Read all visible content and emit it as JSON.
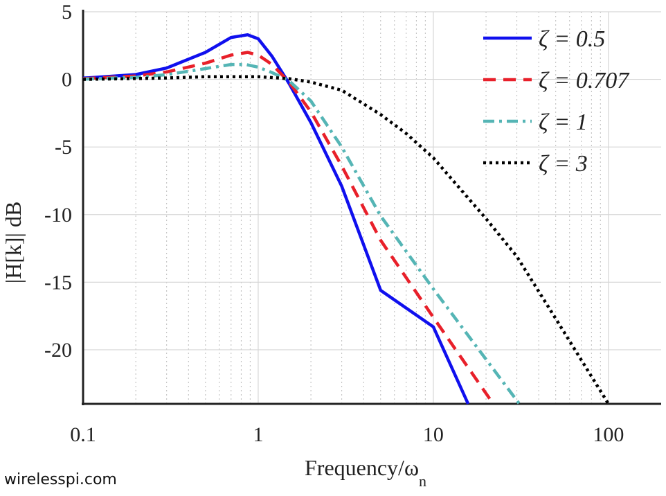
{
  "chart_data": {
    "type": "line",
    "xlabel": "Frequency/ω",
    "xlabel_sub": "n",
    "ylabel": "|H[k]| dB",
    "xscale": "log",
    "xlim": [
      0.1,
      200
    ],
    "ylim": [
      -24,
      5
    ],
    "xticks": [
      0.1,
      1,
      10,
      100
    ],
    "xtick_labels": [
      "0.1",
      "1",
      "10",
      "100"
    ],
    "yticks": [
      5,
      0,
      -5,
      -10,
      -15,
      -20
    ],
    "ytick_labels": [
      "5",
      "0",
      "-5",
      "-10",
      "-15",
      "-20"
    ],
    "grid": true,
    "legend_position": "top-right",
    "series": [
      {
        "name": "ζ = 0.5",
        "zeta": 0.5,
        "color": "#1010ee",
        "dash": "solid",
        "x": [
          0.1,
          0.2,
          0.3,
          0.5,
          0.7,
          0.87,
          1.0,
          1.2,
          1.5,
          2,
          3,
          5,
          10,
          15.8
        ],
        "y": [
          0.09,
          0.36,
          0.84,
          2.0,
          3.1,
          3.3,
          3.0,
          1.7,
          -0.3,
          -3.2,
          -7.9,
          -15.6,
          -18.3,
          -24
        ]
      },
      {
        "name": "ζ = 0.707",
        "zeta": 0.707,
        "color": "#e8202a",
        "dash": "dashed",
        "x": [
          0.1,
          0.2,
          0.3,
          0.5,
          0.7,
          0.87,
          1.0,
          1.2,
          1.5,
          2,
          3,
          5,
          10,
          22
        ],
        "y": [
          0.05,
          0.25,
          0.55,
          1.2,
          1.8,
          2.0,
          1.8,
          1.1,
          -0.2,
          -2.4,
          -6.4,
          -11.9,
          -17.6,
          -24
        ]
      },
      {
        "name": "ζ = 1",
        "zeta": 1,
        "color": "#55b5b5",
        "dash": "dashdot",
        "x": [
          0.1,
          0.2,
          0.3,
          0.5,
          0.7,
          0.85,
          1.0,
          1.2,
          1.5,
          2,
          3,
          5,
          10,
          31
        ],
        "y": [
          0.02,
          0.15,
          0.35,
          0.8,
          1.1,
          1.1,
          0.9,
          0.5,
          -0.1,
          -1.6,
          -5.0,
          -10.1,
          -15.5,
          -24
        ]
      },
      {
        "name": "ζ = 3",
        "zeta": 3,
        "color": "#000000",
        "dash": "dotted",
        "x": [
          0.1,
          0.3,
          0.5,
          1,
          1.5,
          2,
          3,
          5,
          7,
          10,
          20,
          30,
          50,
          100
        ],
        "y": [
          0.0,
          0.1,
          0.2,
          0.2,
          0.05,
          -0.2,
          -0.8,
          -2.6,
          -4.0,
          -5.8,
          -10.3,
          -13.1,
          -17.7,
          -24
        ]
      }
    ]
  },
  "watermark": "wirelesspi.com"
}
